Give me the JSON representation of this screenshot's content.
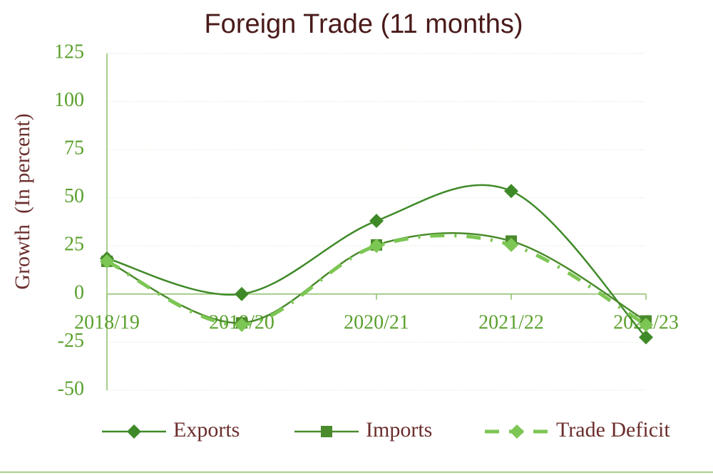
{
  "chart_data": {
    "type": "line",
    "title": "Foreign Trade (11 months)",
    "y_label": "Growth  (In percent)",
    "categories": [
      "2018/19",
      "2019/20",
      "2020/21",
      "2021/22",
      "2022/23"
    ],
    "series": [
      {
        "name": "Exports",
        "color": "#3f8a28",
        "marker": "diamond",
        "dashed": false,
        "values": [
          18.5,
          0,
          38,
          53.5,
          -22.5
        ]
      },
      {
        "name": "Imports",
        "color": "#4a8a2c",
        "marker": "square",
        "dashed": false,
        "values": [
          17,
          -15,
          25.5,
          27.5,
          -14
        ]
      },
      {
        "name": "Trade Deficit",
        "color": "#7cc653",
        "marker": "diamond",
        "dashed": true,
        "values": [
          17,
          -16,
          25,
          25.5,
          -16
        ]
      }
    ],
    "ylim": [
      -50,
      125
    ],
    "yticks": [
      -50,
      -25,
      0,
      25,
      50,
      75,
      100,
      125
    ],
    "grid": true,
    "smooth": true,
    "legend": "bottom"
  }
}
